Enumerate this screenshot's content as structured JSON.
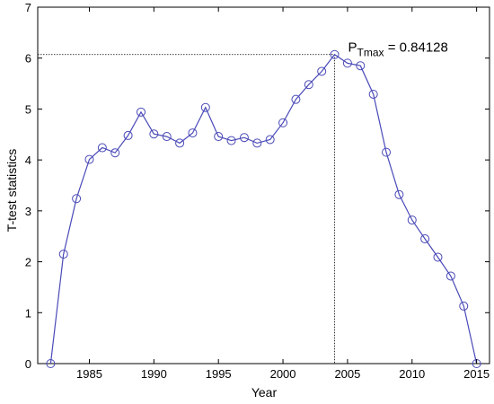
{
  "chart_data": {
    "type": "line",
    "title": "",
    "xlabel": "Year",
    "ylabel": "T-test statistics",
    "xlim": [
      1981,
      2016
    ],
    "ylim": [
      0,
      7
    ],
    "xticks": [
      1985,
      1990,
      1995,
      2000,
      2005,
      2010,
      2015
    ],
    "yticks": [
      0,
      1,
      2,
      3,
      4,
      5,
      6,
      7
    ],
    "grid": false,
    "legend": "none",
    "marker": "circle",
    "line_color": "#4a4ab8",
    "series": [
      {
        "x": [
          1982,
          1983,
          1984,
          1985,
          1986,
          1987,
          1988,
          1989,
          1990,
          1991,
          1992,
          1993,
          1994,
          1995,
          1996,
          1997,
          1998,
          1999,
          2000,
          2001,
          2002,
          2003,
          2004,
          2005,
          2006,
          2007,
          2008,
          2009,
          2010,
          2011,
          2012,
          2013,
          2014,
          2015
        ],
        "y": [
          0,
          2.15,
          3.24,
          4.01,
          4.24,
          4.14,
          4.48,
          4.94,
          4.51,
          4.46,
          4.33,
          4.53,
          5.03,
          4.46,
          4.38,
          4.44,
          4.33,
          4.4,
          4.73,
          5.19,
          5.48,
          5.74,
          6.07,
          5.9,
          5.85,
          5.29,
          4.15,
          3.32,
          2.82,
          2.45,
          2.09,
          1.72,
          1.13,
          0
        ]
      }
    ],
    "annotation": {
      "text_main": "P",
      "text_sub": "Tmax",
      "text_value": " = 0.84128",
      "point": {
        "x": 2004,
        "y": 6.07
      }
    }
  }
}
